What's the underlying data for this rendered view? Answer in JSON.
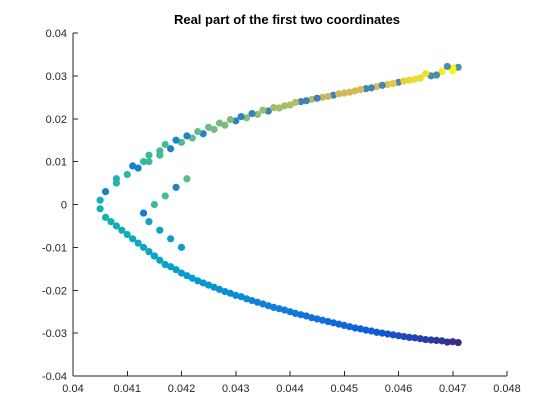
{
  "chart_data": {
    "type": "scatter",
    "title": "Real part of the first two coordinates",
    "xlabel": "",
    "ylabel": "",
    "xlim": [
      0.04,
      0.048
    ],
    "ylim": [
      -0.04,
      0.04
    ],
    "xticks": [
      "0.04",
      "0.041",
      "0.042",
      "0.043",
      "0.044",
      "0.045",
      "0.046",
      "0.047",
      "0.048"
    ],
    "yticks": [
      "0.04",
      "0.03",
      "0.02",
      "0.01",
      "0",
      "-0.01",
      "-0.02",
      "-0.03",
      "-0.04"
    ],
    "grid": false,
    "box": "left-bottom axes only",
    "color_scale": "parula (blue at bottom arm end → teal → green → yellow at top arm end)",
    "series": [
      {
        "description": "upper arm",
        "x": [
          0.0471,
          0.047,
          0.0468,
          0.0466,
          0.0464,
          0.0462,
          0.046,
          0.0458,
          0.0456,
          0.0454,
          0.0452,
          0.045,
          0.0448,
          0.0446,
          0.0444,
          0.0442,
          0.044,
          0.0438,
          0.0436,
          0.0434,
          0.0432,
          0.043,
          0.0428,
          0.0426,
          0.0424,
          0.0422,
          0.042,
          0.0418,
          0.0416,
          0.0414,
          0.0412,
          0.041,
          0.0408,
          0.0406,
          0.0405,
          0.047,
          0.0467,
          0.0463,
          0.0459,
          0.0455,
          0.0451,
          0.0447,
          0.0443,
          0.0439,
          0.0435,
          0.0431,
          0.0427,
          0.0423,
          0.0419,
          0.0416,
          0.0413,
          0.0469,
          0.0465,
          0.0461,
          0.0457,
          0.0453,
          0.0449,
          0.0445,
          0.0441,
          0.0437,
          0.0433,
          0.0429,
          0.0425,
          0.0421,
          0.0417,
          0.0414,
          0.0411,
          0.0408,
          0.0421,
          0.0419,
          0.0417,
          0.0415,
          0.0413
        ],
        "y": [
          0.032,
          0.0318,
          0.031,
          0.03,
          0.0295,
          0.029,
          0.0285,
          0.028,
          0.0275,
          0.027,
          0.0265,
          0.026,
          0.0255,
          0.025,
          0.0245,
          0.024,
          0.0232,
          0.0225,
          0.0218,
          0.021,
          0.0202,
          0.0195,
          0.0185,
          0.0175,
          0.0165,
          0.0155,
          0.0145,
          0.013,
          0.0115,
          0.01,
          0.0085,
          0.007,
          0.005,
          0.003,
          0.001,
          0.0312,
          0.0302,
          0.0292,
          0.0282,
          0.0272,
          0.0262,
          0.0252,
          0.0242,
          0.023,
          0.022,
          0.0205,
          0.019,
          0.017,
          0.015,
          0.0125,
          0.01,
          0.0322,
          0.0305,
          0.0288,
          0.0278,
          0.0268,
          0.0258,
          0.0248,
          0.0238,
          0.0226,
          0.0212,
          0.0198,
          0.018,
          0.016,
          0.014,
          0.0115,
          0.009,
          0.006,
          0.006,
          0.004,
          0.002,
          0.0,
          -0.002
        ]
      },
      {
        "description": "lower arm",
        "x": [
          0.0405,
          0.0406,
          0.0408,
          0.041,
          0.0412,
          0.0414,
          0.0416,
          0.0418,
          0.042,
          0.0422,
          0.0424,
          0.0426,
          0.0428,
          0.043,
          0.0432,
          0.0434,
          0.0436,
          0.0438,
          0.044,
          0.0442,
          0.0444,
          0.0446,
          0.0448,
          0.045,
          0.0452,
          0.0454,
          0.0456,
          0.0458,
          0.046,
          0.0462,
          0.0464,
          0.0466,
          0.0468,
          0.047,
          0.0471,
          0.0407,
          0.0411,
          0.0415,
          0.0419,
          0.0423,
          0.0427,
          0.0431,
          0.0435,
          0.0439,
          0.0443,
          0.0447,
          0.0451,
          0.0455,
          0.0459,
          0.0463,
          0.0467,
          0.0409,
          0.0413,
          0.0417,
          0.0421,
          0.0425,
          0.0429,
          0.0433,
          0.0437,
          0.0441,
          0.0445,
          0.0449,
          0.0453,
          0.0457,
          0.0461,
          0.0465,
          0.0469,
          0.0414,
          0.0416,
          0.0418,
          0.042,
          0.0415
        ],
        "y": [
          -0.001,
          -0.003,
          -0.005,
          -0.007,
          -0.009,
          -0.011,
          -0.013,
          -0.0145,
          -0.016,
          -0.0172,
          -0.0183,
          -0.0193,
          -0.0203,
          -0.0212,
          -0.022,
          -0.0228,
          -0.0236,
          -0.0243,
          -0.025,
          -0.0257,
          -0.0264,
          -0.027,
          -0.0276,
          -0.0282,
          -0.0288,
          -0.0293,
          -0.0298,
          -0.0302,
          -0.0306,
          -0.031,
          -0.0313,
          -0.0316,
          -0.0318,
          -0.032,
          -0.0322,
          -0.004,
          -0.008,
          -0.012,
          -0.0152,
          -0.0178,
          -0.0198,
          -0.0215,
          -0.0232,
          -0.0246,
          -0.026,
          -0.0273,
          -0.0285,
          -0.0295,
          -0.0304,
          -0.0311,
          -0.0317,
          -0.006,
          -0.01,
          -0.014,
          -0.0166,
          -0.0188,
          -0.0207,
          -0.0224,
          -0.024,
          -0.0254,
          -0.0267,
          -0.0279,
          -0.029,
          -0.03,
          -0.0308,
          -0.0315,
          -0.0321,
          -0.004,
          -0.006,
          -0.008,
          -0.01,
          -0.012
        ]
      }
    ]
  }
}
